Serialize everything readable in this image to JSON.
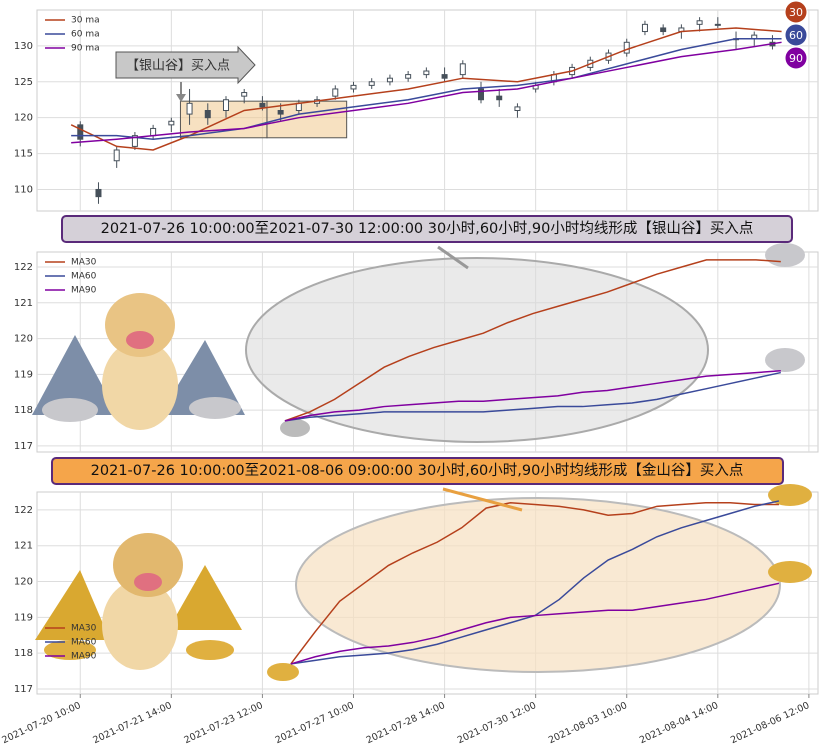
{
  "chart_data": [
    {
      "type": "candlestick",
      "annotation": "【银山谷】买入点",
      "badges": [
        30,
        60,
        90
      ],
      "x": [
        0,
        4,
        8,
        12,
        16,
        20,
        24,
        28,
        32,
        36,
        40,
        44,
        48,
        52,
        56,
        60,
        64,
        68,
        72,
        76,
        80,
        84,
        88,
        92,
        96,
        100,
        104,
        108,
        112,
        116,
        120,
        124,
        128,
        132,
        136,
        140,
        144,
        148,
        152
      ],
      "open": [
        119,
        110,
        114,
        116,
        117.5,
        119,
        120.5,
        121,
        121,
        123,
        122,
        121,
        121,
        122,
        123,
        124,
        124.5,
        125,
        125.5,
        126,
        126,
        126,
        124,
        123,
        121,
        124,
        125,
        126,
        127,
        128,
        129,
        132,
        132.5,
        132,
        133,
        133,
        131,
        131,
        130.5
      ],
      "high": [
        119.5,
        111,
        116,
        118,
        119,
        120,
        124,
        122,
        123,
        124,
        123,
        122,
        122.5,
        123,
        124.5,
        125,
        125.5,
        126,
        126.5,
        127,
        127,
        128,
        125,
        124,
        122,
        125,
        126.5,
        127.5,
        128.5,
        129.5,
        131,
        133.5,
        133,
        133,
        134,
        134,
        132,
        132,
        131.5
      ],
      "low": [
        116,
        108,
        113,
        115.5,
        117,
        118,
        119,
        119,
        120,
        122,
        121,
        119.5,
        120.5,
        121.5,
        122.5,
        123.5,
        124,
        124.5,
        125,
        125.5,
        125,
        125.5,
        122,
        121.5,
        120,
        123.5,
        124.5,
        125.5,
        126.5,
        127.5,
        128.5,
        131.5,
        131.5,
        131,
        132,
        132.5,
        129.5,
        130,
        129.5
      ],
      "close": [
        117,
        109,
        115.5,
        117.5,
        118.5,
        119.5,
        122,
        120,
        122.5,
        123.5,
        121.5,
        120.5,
        122,
        122.5,
        124,
        124.5,
        125,
        125.5,
        126,
        126.5,
        125.5,
        127.5,
        122.5,
        122.5,
        121.5,
        124.5,
        126,
        127,
        128,
        129,
        130.5,
        133,
        132,
        132.5,
        133.5,
        133,
        131,
        131.5,
        130
      ],
      "candle_color": "#46505a",
      "zones": [
        {
          "x": [
            22,
            41
          ],
          "y": [
            117.2,
            122.3
          ]
        },
        {
          "x": [
            41,
            58.5
          ],
          "y": [
            117.2,
            122.3
          ]
        }
      ],
      "series": [
        {
          "name": "30 ma",
          "color": "#b5401c",
          "x": [
            -2,
            8,
            16,
            24,
            36,
            48,
            60,
            72,
            84,
            96,
            108,
            120,
            132,
            144,
            154
          ],
          "values": [
            119,
            116,
            115.5,
            117.5,
            121,
            122,
            123,
            124,
            125.5,
            125,
            126.5,
            129.5,
            132,
            132.5,
            132
          ]
        },
        {
          "name": "60 ma",
          "color": "#3a4a9a",
          "x": [
            -2,
            8,
            16,
            24,
            36,
            48,
            60,
            72,
            84,
            96,
            108,
            120,
            132,
            144,
            154
          ],
          "values": [
            117.5,
            117.5,
            117,
            117.5,
            118.5,
            120.5,
            121.5,
            122.5,
            124,
            124.5,
            125.5,
            127.5,
            129.5,
            131,
            131
          ]
        },
        {
          "name": "90 ma",
          "color": "#8000a0",
          "x": [
            -2,
            8,
            16,
            24,
            36,
            48,
            60,
            72,
            84,
            96,
            108,
            120,
            132,
            144,
            154
          ],
          "values": [
            116.5,
            117,
            117.5,
            118,
            118.5,
            120,
            121,
            122,
            123.5,
            124,
            125.5,
            127,
            128.5,
            129.5,
            130.5
          ]
        }
      ],
      "xlim": [
        -9.5,
        162
      ],
      "ylim": [
        107,
        135
      ],
      "yticks": [
        110,
        115,
        120,
        125,
        130
      ],
      "xticks": [
        {
          "value": 0,
          "label": "2021-07-20 10:00"
        },
        {
          "value": 20,
          "label": "2021-07-21 14:00"
        },
        {
          "value": 40,
          "label": "2021-07-23 12:00"
        },
        {
          "value": 60,
          "label": "2021-07-27 10:00"
        },
        {
          "value": 80,
          "label": "2021-07-28 14:00"
        },
        {
          "value": 100,
          "label": "2021-07-30 12:00"
        },
        {
          "value": 120,
          "label": "2021-08-03 10:00"
        },
        {
          "value": 140,
          "label": "2021-08-04 14:00"
        },
        {
          "value": 160,
          "label": "2021-08-06 12:00"
        }
      ],
      "grid": true,
      "legend": "upper left"
    },
    {
      "type": "line",
      "title": "2021-07-26 10:00:00至2021-07-30 12:00:00 30小时,60小时,90小时均线形成【银山谷】买入点",
      "x": [
        0,
        1,
        2,
        3,
        4,
        5,
        6,
        7,
        8,
        9,
        10,
        11,
        12,
        13,
        14,
        15,
        16,
        17,
        18,
        19,
        20
      ],
      "series": [
        {
          "name": "MA30",
          "color": "#b5401c",
          "values": [
            117.7,
            117.95,
            118.3,
            118.75,
            119.2,
            119.5,
            119.75,
            119.95,
            120.15,
            120.45,
            120.7,
            120.9,
            121.1,
            121.3,
            121.55,
            121.8,
            122.0,
            122.2,
            122.2,
            122.2,
            122.15
          ]
        },
        {
          "name": "MA60",
          "color": "#3a4a9a",
          "values": [
            117.7,
            117.8,
            117.85,
            117.9,
            117.95,
            117.95,
            117.95,
            117.95,
            117.95,
            118.0,
            118.05,
            118.1,
            118.1,
            118.15,
            118.2,
            118.3,
            118.45,
            118.6,
            118.75,
            118.9,
            119.05
          ]
        },
        {
          "name": "MA90",
          "color": "#8000a0",
          "values": [
            117.7,
            117.85,
            117.95,
            118.0,
            118.1,
            118.15,
            118.2,
            118.25,
            118.25,
            118.3,
            118.35,
            118.4,
            118.5,
            118.55,
            118.65,
            118.75,
            118.85,
            118.95,
            119.0,
            119.05,
            119.1
          ]
        }
      ],
      "xlim": [
        -10,
        21.5
      ],
      "ylim": [
        116.83,
        122.42
      ],
      "yticks": [
        117,
        118,
        119,
        120,
        121,
        122
      ],
      "grid": true,
      "legend": "upper left"
    },
    {
      "type": "line",
      "title": "2021-07-26 10:00:00至2021-08-06 09:00:00 30小时,60小时,90小时均线形成【金山谷】买入点",
      "x": [
        0,
        1,
        2,
        3,
        4,
        5,
        6,
        7,
        8,
        9,
        10,
        11,
        12,
        13,
        14,
        15,
        16,
        17,
        18,
        19,
        20
      ],
      "series": [
        {
          "name": "MA30",
          "color": "#b5401c",
          "values": [
            117.7,
            118.6,
            119.45,
            119.95,
            120.45,
            120.8,
            121.1,
            121.5,
            122.05,
            122.2,
            122.15,
            122.1,
            122.0,
            121.85,
            121.9,
            122.1,
            122.15,
            122.2,
            122.2,
            122.15,
            122.15
          ]
        },
        {
          "name": "MA60",
          "color": "#3a4a9a",
          "values": [
            117.7,
            117.8,
            117.9,
            117.95,
            118.0,
            118.1,
            118.25,
            118.45,
            118.65,
            118.85,
            119.05,
            119.5,
            120.1,
            120.6,
            120.9,
            121.25,
            121.5,
            121.7,
            121.9,
            122.1,
            122.25
          ]
        },
        {
          "name": "MA90",
          "color": "#8000a0",
          "values": [
            117.7,
            117.9,
            118.05,
            118.15,
            118.2,
            118.3,
            118.45,
            118.65,
            118.85,
            119.0,
            119.05,
            119.1,
            119.15,
            119.2,
            119.2,
            119.3,
            119.4,
            119.5,
            119.65,
            119.8,
            119.95
          ]
        }
      ],
      "xlim": [
        -10.4,
        21.6
      ],
      "ylim": [
        116.86,
        122.5
      ],
      "yticks": [
        117,
        118,
        119,
        120,
        121,
        122
      ],
      "grid": true,
      "legend": "lower left"
    }
  ]
}
